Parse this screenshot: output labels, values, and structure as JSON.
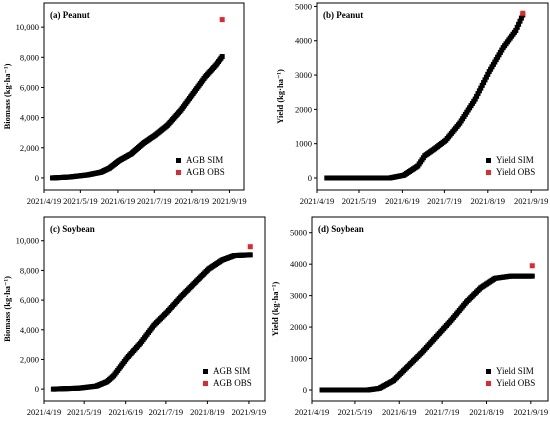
{
  "colors": {
    "sim": "#000000",
    "obs": "#e8262a"
  },
  "chart_data": [
    {
      "type": "scatter",
      "title": "(a) Peanut",
      "xlabel": "",
      "ylabel": "Biomass (kg·ha⁻¹)",
      "x_ticks": [
        "2021/4/19",
        "2021/5/19",
        "2021/6/19",
        "2021/7/19",
        "2021/8/19",
        "2021/9/19"
      ],
      "xlim": [
        "2021-04-19",
        "2021-10-01"
      ],
      "y_ticks": [
        "0",
        "2,000",
        "4,000",
        "6,000",
        "8,000",
        "10,000"
      ],
      "ylim": [
        -800,
        11600
      ],
      "legend_position": "bottom-right",
      "series": [
        {
          "name": "AGB SIM",
          "marker": "square",
          "x_start": "2021-04-26",
          "x_end": "2021-09-13",
          "points": [
            [
              "2021-04-26",
              0
            ],
            [
              "2021-05-10",
              60
            ],
            [
              "2021-05-25",
              200
            ],
            [
              "2021-06-05",
              380
            ],
            [
              "2021-06-12",
              650
            ],
            [
              "2021-06-20",
              1150
            ],
            [
              "2021-06-30",
              1600
            ],
            [
              "2021-07-10",
              2300
            ],
            [
              "2021-07-20",
              2850
            ],
            [
              "2021-07-30",
              3500
            ],
            [
              "2021-08-10",
              4500
            ],
            [
              "2021-08-20",
              5600
            ],
            [
              "2021-08-30",
              6700
            ],
            [
              "2021-09-08",
              7500
            ],
            [
              "2021-09-13",
              8050
            ]
          ]
        },
        {
          "name": "AGB OBS",
          "marker": "square",
          "points": [
            [
              "2021-09-13",
              10500
            ]
          ]
        }
      ]
    },
    {
      "type": "scatter",
      "title": "(b) Peanut",
      "xlabel": "",
      "ylabel": "Yield (kg·ha⁻¹)",
      "x_ticks": [
        "2021/4/19",
        "2021/5/19",
        "2021/6/19",
        "2021/7/19",
        "2021/8/19",
        "2021/9/19"
      ],
      "xlim": [
        "2021-04-19",
        "2021-10-01"
      ],
      "y_ticks": [
        "0",
        "1000",
        "2000",
        "3000",
        "4000",
        "5000"
      ],
      "ylim": [
        -350,
        5100
      ],
      "legend_position": "bottom-right",
      "series": [
        {
          "name": "Yield SIM",
          "marker": "square",
          "x_start": "2021-04-26",
          "x_end": "2021-09-13",
          "points": [
            [
              "2021-04-26",
              0
            ],
            [
              "2021-06-10",
              0
            ],
            [
              "2021-06-20",
              80
            ],
            [
              "2021-06-30",
              350
            ],
            [
              "2021-07-05",
              650
            ],
            [
              "2021-07-12",
              850
            ],
            [
              "2021-07-20",
              1100
            ],
            [
              "2021-07-30",
              1600
            ],
            [
              "2021-08-10",
              2300
            ],
            [
              "2021-08-20",
              3100
            ],
            [
              "2021-08-30",
              3800
            ],
            [
              "2021-09-08",
              4300
            ],
            [
              "2021-09-13",
              4750
            ]
          ]
        },
        {
          "name": "Yield OBS",
          "marker": "square",
          "points": [
            [
              "2021-09-13",
              4800
            ]
          ]
        }
      ]
    },
    {
      "type": "scatter",
      "title": "(c) Soybean",
      "xlabel": "",
      "ylabel": "Biomass (kg·ha⁻¹)",
      "x_ticks": [
        "2021/4/19",
        "2021/5/19",
        "2021/6/19",
        "2021/7/19",
        "2021/8/19",
        "2021/9/19"
      ],
      "xlim": [
        "2021-04-19",
        "2021-10-01"
      ],
      "y_ticks": [
        "0",
        "2,000",
        "4,000",
        "6,000",
        "8,000",
        "10,000"
      ],
      "ylim": [
        -800,
        11600
      ],
      "legend_position": "bottom-right",
      "series": [
        {
          "name": "AGB SIM",
          "marker": "square",
          "x_start": "2021-04-26",
          "x_end": "2021-09-20",
          "points": [
            [
              "2021-04-26",
              0
            ],
            [
              "2021-05-15",
              60
            ],
            [
              "2021-05-28",
              200
            ],
            [
              "2021-06-05",
              500
            ],
            [
              "2021-06-10",
              900
            ],
            [
              "2021-06-15",
              1500
            ],
            [
              "2021-06-20",
              2100
            ],
            [
              "2021-06-30",
              3100
            ],
            [
              "2021-07-10",
              4300
            ],
            [
              "2021-07-20",
              5200
            ],
            [
              "2021-07-30",
              6200
            ],
            [
              "2021-08-10",
              7200
            ],
            [
              "2021-08-20",
              8100
            ],
            [
              "2021-08-30",
              8700
            ],
            [
              "2021-09-08",
              9000
            ],
            [
              "2021-09-20",
              9050
            ]
          ]
        },
        {
          "name": "AGB OBS",
          "marker": "square",
          "points": [
            [
              "2021-09-20",
              9600
            ]
          ]
        }
      ]
    },
    {
      "type": "scatter",
      "title": "(d) Soybean",
      "xlabel": "",
      "ylabel": "Yield (kg·ha⁻¹)",
      "x_ticks": [
        "2021/4/19",
        "2021/5/19",
        "2021/6/19",
        "2021/7/19",
        "2021/8/19",
        "2021/9/19"
      ],
      "xlim": [
        "2021-04-19",
        "2021-10-01"
      ],
      "y_ticks": [
        "0",
        "1000",
        "2000",
        "3000",
        "4000",
        "5000"
      ],
      "ylim": [
        -350,
        5500
      ],
      "legend_position": "bottom-right",
      "series": [
        {
          "name": "Yield SIM",
          "marker": "square",
          "x_start": "2021-04-26",
          "x_end": "2021-09-20",
          "points": [
            [
              "2021-04-26",
              0
            ],
            [
              "2021-05-28",
              0
            ],
            [
              "2021-06-05",
              50
            ],
            [
              "2021-06-15",
              300
            ],
            [
              "2021-06-25",
              750
            ],
            [
              "2021-07-05",
              1200
            ],
            [
              "2021-07-15",
              1700
            ],
            [
              "2021-07-25",
              2200
            ],
            [
              "2021-08-05",
              2800
            ],
            [
              "2021-08-15",
              3250
            ],
            [
              "2021-08-25",
              3550
            ],
            [
              "2021-09-05",
              3620
            ],
            [
              "2021-09-20",
              3620
            ]
          ]
        },
        {
          "name": "Yield OBS",
          "marker": "square",
          "points": [
            [
              "2021-09-20",
              3950
            ]
          ]
        }
      ]
    }
  ]
}
